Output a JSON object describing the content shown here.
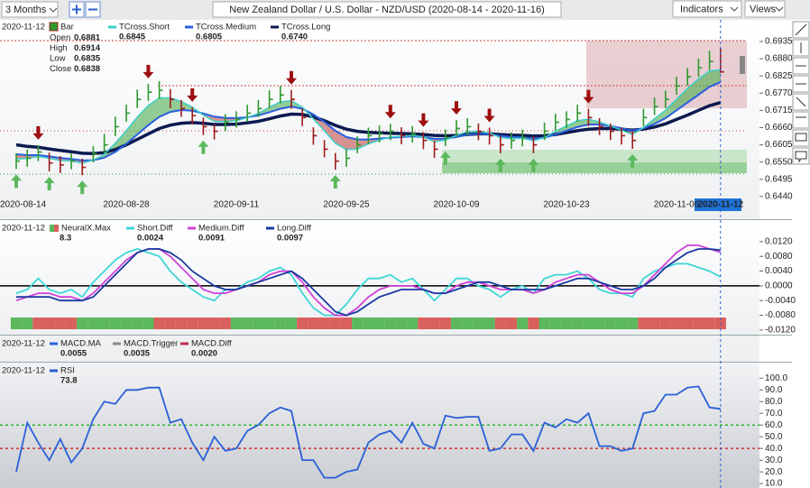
{
  "toolbar": {
    "range": "3 Months",
    "title": "New Zealand Dollar / U.S. Dollar - NZD/USD (2020-08-14 - 2020-11-16)",
    "indicators": "Indicators",
    "views": "Views"
  },
  "chart_data": [
    {
      "type": "ohlc",
      "categories": [
        "2020-08-14",
        null,
        null,
        null,
        null,
        null,
        null,
        null,
        null,
        null,
        "2020-08-28",
        null,
        null,
        null,
        null,
        null,
        null,
        null,
        null,
        null,
        "2020-09-11",
        null,
        null,
        null,
        null,
        null,
        null,
        null,
        null,
        null,
        "2020-09-25",
        null,
        null,
        null,
        null,
        null,
        null,
        null,
        null,
        null,
        "2020-10-09",
        null,
        null,
        null,
        null,
        null,
        null,
        null,
        null,
        null,
        "2020-10-23",
        null,
        null,
        null,
        null,
        null,
        null,
        null,
        null,
        null,
        "2020-11-06",
        null,
        null,
        null,
        "2020-11-12"
      ],
      "bar_label": "Bar",
      "high": [
        0.6578,
        0.659,
        0.6604,
        0.658,
        0.6569,
        0.6577,
        0.6561,
        0.6601,
        0.664,
        0.6695,
        0.6733,
        0.6781,
        0.68,
        0.6808,
        0.6783,
        0.6748,
        0.6725,
        0.6692,
        0.6671,
        0.6703,
        0.6712,
        0.6733,
        0.6748,
        0.6779,
        0.6793,
        0.678,
        0.6722,
        0.6661,
        0.662,
        0.6579,
        0.6591,
        0.6632,
        0.666,
        0.6667,
        0.6672,
        0.6661,
        0.6665,
        0.6645,
        0.6617,
        0.6654,
        0.6684,
        0.669,
        0.6673,
        0.666,
        0.6633,
        0.6645,
        0.6653,
        0.6632,
        0.6676,
        0.6704,
        0.6712,
        0.6733,
        0.672,
        0.669,
        0.6673,
        0.666,
        0.6647,
        0.672,
        0.6756,
        0.6778,
        0.6822,
        0.685,
        0.688,
        0.6905,
        0.6914
      ],
      "low": [
        0.6528,
        0.6535,
        0.6553,
        0.652,
        0.6515,
        0.6527,
        0.6508,
        0.6549,
        0.6578,
        0.6633,
        0.6679,
        0.6722,
        0.6745,
        0.6752,
        0.6722,
        0.6694,
        0.667,
        0.6636,
        0.6622,
        0.6649,
        0.666,
        0.6679,
        0.6694,
        0.6722,
        0.6737,
        0.672,
        0.6665,
        0.6605,
        0.6565,
        0.6526,
        0.6535,
        0.6578,
        0.6607,
        0.6612,
        0.662,
        0.6607,
        0.6612,
        0.6591,
        0.6563,
        0.6601,
        0.663,
        0.6636,
        0.662,
        0.6606,
        0.6578,
        0.6592,
        0.66,
        0.6578,
        0.662,
        0.665,
        0.6659,
        0.6679,
        0.6665,
        0.6636,
        0.662,
        0.6606,
        0.6592,
        0.6664,
        0.67,
        0.6722,
        0.6765,
        0.6794,
        0.6822,
        0.6843,
        0.6835
      ],
      "close": [
        0.6553,
        0.6562,
        0.6582,
        0.6547,
        0.6541,
        0.6553,
        0.6533,
        0.6576,
        0.6605,
        0.6663,
        0.6706,
        0.675,
        0.6773,
        0.6779,
        0.675,
        0.6721,
        0.6698,
        0.6663,
        0.6648,
        0.6677,
        0.6686,
        0.6706,
        0.6721,
        0.675,
        0.6764,
        0.675,
        0.6692,
        0.6634,
        0.6591,
        0.6553,
        0.6562,
        0.6605,
        0.6634,
        0.664,
        0.6648,
        0.6634,
        0.664,
        0.6619,
        0.6591,
        0.6628,
        0.6657,
        0.6663,
        0.6648,
        0.6634,
        0.6605,
        0.6619,
        0.6628,
        0.6605,
        0.6648,
        0.6677,
        0.6686,
        0.6706,
        0.6692,
        0.6663,
        0.6648,
        0.6634,
        0.6619,
        0.6692,
        0.6727,
        0.675,
        0.6793,
        0.6822,
        0.6851,
        0.6871,
        0.6838
      ],
      "bar_colors": {
        "up": "#2e9a2e",
        "down": "#9e1c1c"
      },
      "readout": [
        {
          "label": "Open",
          "value": 0.6881
        },
        {
          "label": "High",
          "value": 0.6914
        },
        {
          "label": "Low",
          "value": 0.6835
        },
        {
          "label": "Close",
          "value": 0.6838
        }
      ],
      "series": [
        {
          "name": "TCross.Short",
          "color": "#3ccfc6",
          "readout": 0.6845,
          "values": [
            0.656,
            0.6561,
            0.6568,
            0.6562,
            0.6555,
            0.6554,
            0.6547,
            0.6556,
            0.6575,
            0.661,
            0.665,
            0.6693,
            0.673,
            0.6755,
            0.6755,
            0.6743,
            0.6725,
            0.67,
            0.668,
            0.6679,
            0.6682,
            0.6692,
            0.6705,
            0.6725,
            0.6742,
            0.6746,
            0.6725,
            0.6688,
            0.665,
            0.661,
            0.659,
            0.6592,
            0.6608,
            0.662,
            0.663,
            0.6632,
            0.6635,
            0.663,
            0.6615,
            0.662,
            0.6635,
            0.6647,
            0.6648,
            0.6643,
            0.6628,
            0.6625,
            0.6626,
            0.6618,
            0.6628,
            0.6648,
            0.6665,
            0.6682,
            0.6687,
            0.6678,
            0.6665,
            0.6652,
            0.6638,
            0.666,
            0.6688,
            0.6715,
            0.675,
            0.6785,
            0.6815,
            0.684,
            0.6845
          ]
        },
        {
          "name": "TCross.Medium",
          "color": "#2a5fe0",
          "readout": 0.6805,
          "values": [
            0.6575,
            0.6572,
            0.6572,
            0.6568,
            0.6563,
            0.656,
            0.6555,
            0.6556,
            0.6564,
            0.6582,
            0.6608,
            0.6638,
            0.6668,
            0.6694,
            0.671,
            0.6716,
            0.6714,
            0.6705,
            0.6695,
            0.6691,
            0.669,
            0.6693,
            0.6699,
            0.6709,
            0.672,
            0.6727,
            0.672,
            0.6702,
            0.6678,
            0.665,
            0.663,
            0.6622,
            0.6622,
            0.6625,
            0.6628,
            0.663,
            0.6632,
            0.663,
            0.6624,
            0.6624,
            0.663,
            0.6637,
            0.664,
            0.6639,
            0.6633,
            0.663,
            0.6629,
            0.6625,
            0.6628,
            0.6638,
            0.665,
            0.6662,
            0.667,
            0.667,
            0.6665,
            0.6658,
            0.665,
            0.6658,
            0.6672,
            0.669,
            0.6715,
            0.674,
            0.6765,
            0.679,
            0.6805
          ]
        },
        {
          "name": "TCross.Long",
          "color": "#0b1a4f",
          "readout": {
            "value": 0.674,
            "label": "0.6740"
          },
          "values": [
            0.6605,
            0.66,
            0.6597,
            0.6592,
            0.6587,
            0.6583,
            0.6578,
            0.6577,
            0.658,
            0.659,
            0.6605,
            0.6622,
            0.664,
            0.6657,
            0.6668,
            0.6674,
            0.6676,
            0.6674,
            0.667,
            0.667,
            0.6671,
            0.6675,
            0.668,
            0.6688,
            0.6697,
            0.6703,
            0.6702,
            0.6694,
            0.6682,
            0.6667,
            0.6655,
            0.6648,
            0.6645,
            0.6643,
            0.6642,
            0.6641,
            0.664,
            0.6638,
            0.6635,
            0.6634,
            0.6635,
            0.6638,
            0.664,
            0.664,
            0.6638,
            0.6636,
            0.6635,
            0.6633,
            0.6634,
            0.6638,
            0.6644,
            0.665,
            0.6655,
            0.6657,
            0.6657,
            0.6655,
            0.6652,
            0.6655,
            0.6662,
            0.6672,
            0.6686,
            0.67,
            0.6715,
            0.673,
            0.674
          ]
        }
      ],
      "fill_colors": {
        "up": "#4fae4f",
        "down": "#c0504d"
      },
      "signals": {
        "up": [
          0,
          3,
          6,
          17,
          29,
          39,
          44,
          47,
          56
        ],
        "down": [
          2,
          12,
          16,
          25,
          34,
          37,
          40,
          43,
          52
        ],
        "up_color": "#5cb85c",
        "down_color": "#9e1010"
      },
      "ylim": [
        0.6428,
        0.7004
      ],
      "yticks": [
        0.6935,
        {
          "value": 0.688,
          "label": "0.6880"
        },
        0.6825,
        {
          "value": 0.677,
          "label": "0.6770"
        },
        0.6715,
        {
          "value": 0.666,
          "label": "0.6660"
        },
        0.6605,
        {
          "value": 0.655,
          "label": "0.6550"
        },
        0.6495,
        {
          "value": 0.644,
          "label": "0.6440"
        }
      ]
    },
    {
      "type": "line",
      "strip": {
        "name": "NeuralX.Max",
        "readout": 8.3,
        "up_color": "#5cb85c",
        "down_color": "#d9605c",
        "values": [
          1,
          1,
          -1,
          -1,
          -1,
          -1,
          1,
          1,
          1,
          1,
          1,
          1,
          1,
          -1,
          -1,
          -1,
          -1,
          -1,
          -1,
          -1,
          1,
          1,
          1,
          1,
          1,
          1,
          -1,
          -1,
          -1,
          -1,
          -1,
          1,
          1,
          1,
          1,
          1,
          1,
          -1,
          -1,
          -1,
          1,
          1,
          1,
          1,
          -1,
          -1,
          1,
          -1,
          1,
          1,
          1,
          1,
          1,
          1,
          1,
          1,
          1,
          -1,
          -1,
          -1,
          -1,
          -1,
          -1,
          -1,
          -1
        ]
      },
      "series": [
        {
          "name": "Short.Diff",
          "color": "#3fd6d6",
          "readout": 0.0024,
          "values": [
            -0.002,
            -0.001,
            0.002,
            -0.001,
            -0.002,
            -0.001,
            -0.003,
            0.001,
            0.004,
            0.007,
            0.009,
            0.01,
            0.009,
            0.008,
            0.004,
            0.001,
            -0.001,
            -0.003,
            -0.004,
            -0.001,
            -0.001,
            0.001,
            0.002,
            0.004,
            0.005,
            0.003,
            -0.002,
            -0.006,
            -0.008,
            -0.008,
            -0.005,
            -0.001,
            0.002,
            0.002,
            0.003,
            0.001,
            0.002,
            -0.001,
            -0.004,
            -0.001,
            0.002,
            0.002,
            0,
            -0.001,
            -0.003,
            -0.001,
            0,
            -0.002,
            0.002,
            0.003,
            0.003,
            0.004,
            0.002,
            -0.001,
            -0.002,
            -0.002,
            -0.003,
            0.002,
            0.004,
            0.005,
            0.006,
            0.006,
            0.005,
            0.004,
            0.0024
          ]
        },
        {
          "name": "Medium.Diff",
          "color": "#d040d8",
          "readout": 0.0091,
          "values": [
            -0.004,
            -0.003,
            -0.002,
            -0.002,
            -0.003,
            -0.003,
            -0.004,
            -0.002,
            0.001,
            0.004,
            0.007,
            0.009,
            0.01,
            0.01,
            0.008,
            0.005,
            0.002,
            -0.001,
            -0.002,
            -0.002,
            -0.001,
            0,
            0.001,
            0.003,
            0.004,
            0.004,
            0.001,
            -0.003,
            -0.006,
            -0.008,
            -0.008,
            -0.006,
            -0.003,
            -0.001,
            0,
            0,
            0,
            -0.001,
            -0.002,
            -0.002,
            0,
            0.001,
            0.001,
            0,
            -0.001,
            -0.001,
            -0.001,
            -0.002,
            -0.001,
            0.001,
            0.002,
            0.003,
            0.003,
            0.001,
            -0.001,
            -0.002,
            -0.002,
            0,
            0.003,
            0.006,
            0.009,
            0.011,
            0.011,
            0.01,
            0.0091
          ]
        },
        {
          "name": "Long.Diff",
          "color": "#1a3aa0",
          "readout": 0.0097,
          "values": [
            -0.003,
            -0.003,
            -0.003,
            -0.003,
            -0.004,
            -0.004,
            -0.004,
            -0.003,
            0,
            0.003,
            0.006,
            0.009,
            0.01,
            0.01,
            0.009,
            0.007,
            0.004,
            0.002,
            0,
            -0.001,
            -0.001,
            0,
            0.001,
            0.002,
            0.003,
            0.004,
            0.002,
            -0.001,
            -0.004,
            -0.007,
            -0.008,
            -0.007,
            -0.005,
            -0.003,
            -0.002,
            -0.001,
            -0.001,
            -0.001,
            -0.002,
            -0.002,
            -0.001,
            0,
            0.001,
            0.001,
            0,
            -0.001,
            -0.001,
            -0.001,
            -0.001,
            0,
            0.001,
            0.002,
            0.002,
            0.001,
            0,
            -0.001,
            -0.001,
            0,
            0.002,
            0.005,
            0.007,
            0.009,
            0.01,
            0.01,
            0.0097
          ]
        }
      ],
      "ylim": [
        -0.013,
        0.0176
      ],
      "yticks": [
        {
          "value": 0.012,
          "label": "0.0120"
        },
        {
          "value": 0.008,
          "label": "0.0080"
        },
        {
          "value": 0.004,
          "label": "0.0040"
        },
        {
          "value": 0,
          "label": "0.0000"
        },
        {
          "value": -0.004,
          "label": "-0.0040"
        },
        {
          "value": -0.008,
          "label": "-0.0080"
        },
        {
          "value": -0.012,
          "label": "-0.0120"
        }
      ],
      "zero_line": true
    },
    {
      "type": "readout",
      "series": [
        {
          "name": "MACD.MA",
          "color": "#2a5fe0",
          "readout": 0.0055
        },
        {
          "name": "MACD.Trigger",
          "color": "#8a8a8a",
          "readout": 0.0035
        },
        {
          "name": "MACD.Diff",
          "color": "#c0304a",
          "readout": {
            "value": 0.002,
            "label": "0.0020"
          }
        }
      ]
    },
    {
      "type": "line",
      "series": [
        {
          "name": "RSI",
          "color": "#2a5fd8",
          "readout": 73.8,
          "values": [
            20,
            62,
            45,
            30,
            48,
            28,
            40,
            65,
            80,
            78,
            90,
            90,
            92,
            92,
            62,
            65,
            45,
            30,
            50,
            38,
            40,
            55,
            60,
            70,
            75,
            72,
            30,
            30,
            15,
            15,
            20,
            22,
            45,
            52,
            55,
            45,
            62,
            44,
            40,
            68,
            66,
            67,
            67,
            38,
            40,
            52,
            52,
            38,
            62,
            58,
            65,
            62,
            70,
            42,
            42,
            38,
            40,
            70,
            72,
            86,
            86,
            92,
            93,
            75,
            73.8
          ]
        }
      ],
      "levels": [
        {
          "value": 60,
          "color": "#2db82d"
        },
        {
          "value": 40,
          "color": "#d03030"
        }
      ],
      "ylim": [
        7,
        111
      ],
      "yticks": [
        {
          "value": 100,
          "label": "100.0"
        },
        {
          "value": 90,
          "label": "90.0"
        },
        {
          "value": 80,
          "label": "80.0"
        },
        {
          "value": 70,
          "label": "70.0"
        },
        {
          "value": 60,
          "label": "60.0"
        },
        {
          "value": 50,
          "label": "50.0"
        },
        {
          "value": 40,
          "label": "40.0"
        },
        {
          "value": 30,
          "label": "30.0"
        },
        {
          "value": 20,
          "label": "20.0"
        },
        {
          "value": 10,
          "label": "10.0"
        }
      ]
    }
  ]
}
